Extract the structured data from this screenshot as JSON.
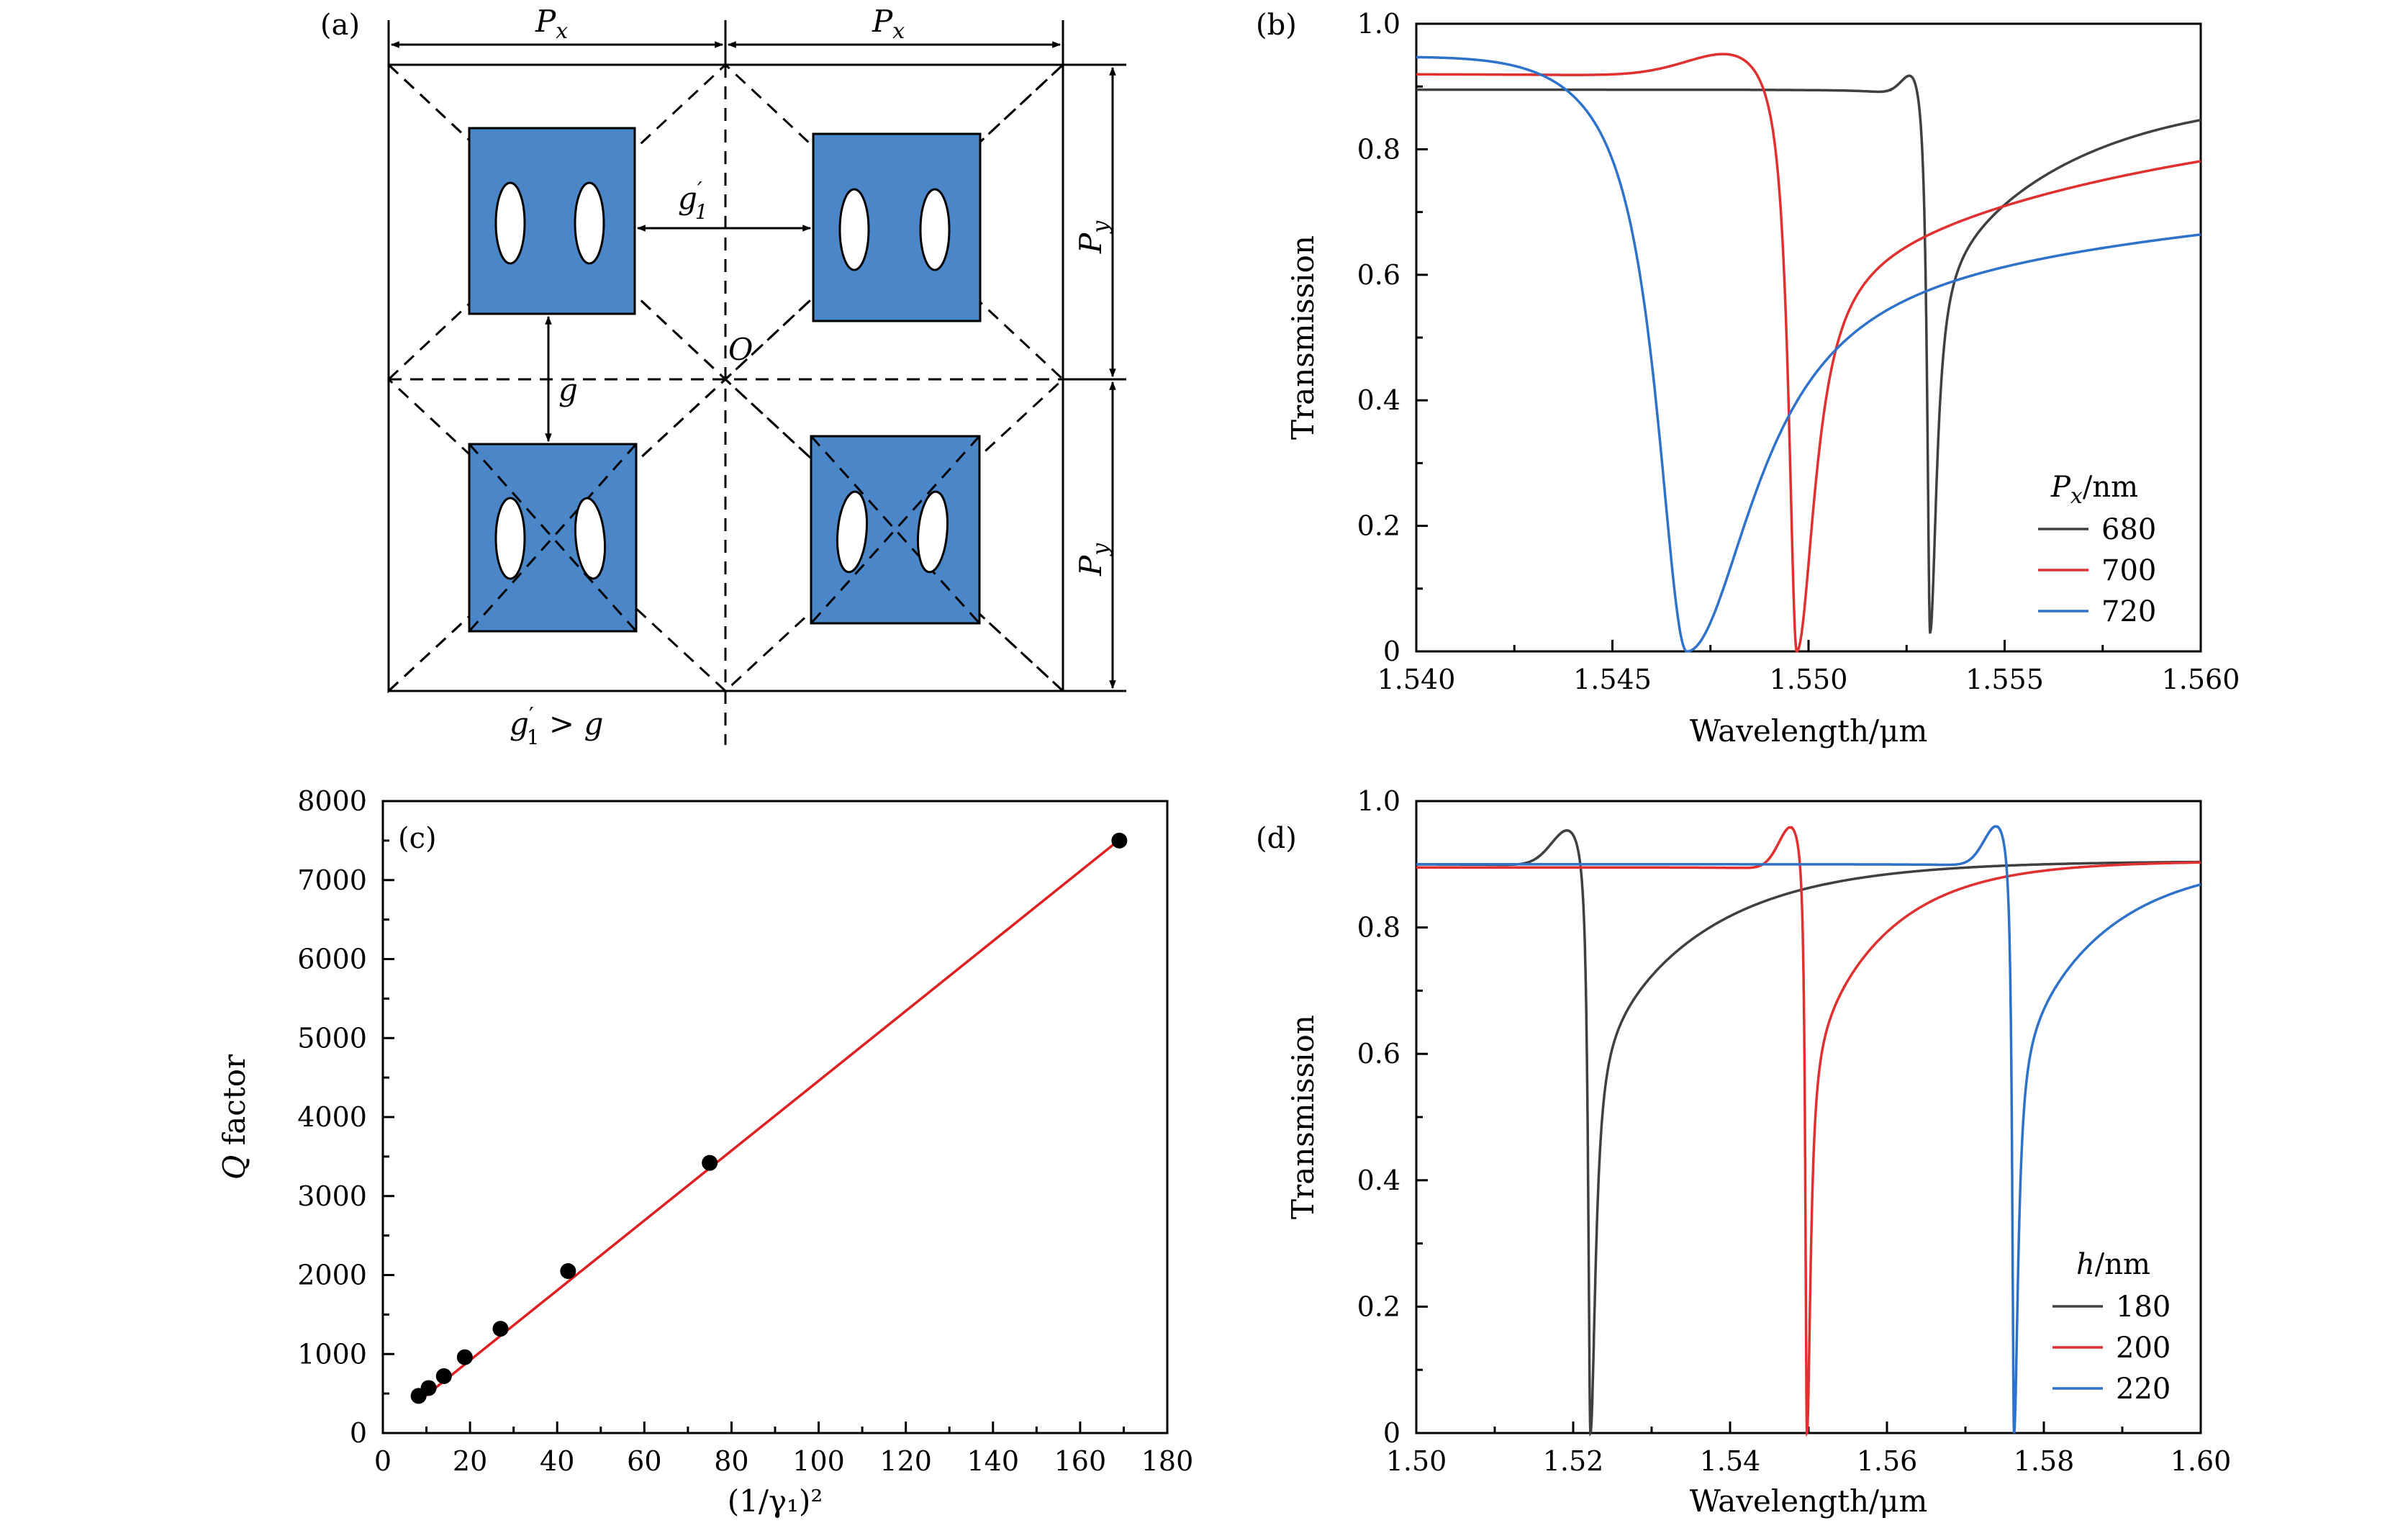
{
  "panels": {
    "a": {
      "label": "(a)",
      "px_label": "P",
      "px_sub": "x",
      "py_label": "P",
      "py_sub": "y",
      "g_label": "g",
      "g1_label": "g",
      "g1_sub": "1",
      "prime": "′",
      "origin_label": "O",
      "relation_gt": " > ",
      "relation_g": "g",
      "colors": {
        "square": "#4a86c8",
        "line": "#000000"
      }
    },
    "b": {
      "label": "(b)"
    },
    "c": {
      "label": "(c)"
    },
    "d": {
      "label": "(d)"
    }
  },
  "chart_data": [
    {
      "panel": "b",
      "type": "line",
      "xlabel": "Wavelength/μm",
      "ylabel": "Transmission",
      "xlim": [
        1.54,
        1.56
      ],
      "ylim": [
        0,
        1.0
      ],
      "xticks": [
        "1.540",
        "1.545",
        "1.550",
        "1.555",
        "1.560"
      ],
      "yticks": [
        "0",
        "0.2",
        "0.4",
        "0.6",
        "0.8",
        "1.0"
      ],
      "legend": {
        "title_var": "P",
        "title_sub": "x",
        "title_unit": "/nm",
        "position": "bottom-right"
      },
      "series": [
        {
          "name": "680",
          "color": "#404040",
          "baseline": 0.895,
          "peak": 0.955,
          "dip_x": 1.5531,
          "dip_min": 0.03,
          "width": 9e-05,
          "asym_wl": 1.5528,
          "slope": 0.0,
          "tail": 0.89
        },
        {
          "name": "700",
          "color": "#e03030",
          "baseline": 0.92,
          "peak": 0.975,
          "dip_x": 1.5497,
          "dip_min": 0.0,
          "width": 0.00025,
          "asym_wl": 1.5485,
          "slope": 0.0,
          "tail": 0.885
        },
        {
          "name": "720",
          "color": "#2f72c9",
          "baseline": 0.955,
          "peak": 0.98,
          "dip_x": 1.5469,
          "dip_min": 0.0,
          "width": 0.00095,
          "asym_wl": 1.5442,
          "slope": 0.0,
          "tail": 0.878
        }
      ]
    },
    {
      "panel": "c",
      "type": "scatter",
      "xlabel": "(1/γ₁)²",
      "ylabel_var": "Q",
      "ylabel_rest": " factor",
      "xlim": [
        0,
        180
      ],
      "ylim": [
        0,
        8000
      ],
      "xticks": [
        "0",
        "20",
        "40",
        "60",
        "80",
        "100",
        "120",
        "140",
        "160",
        "180"
      ],
      "yticks": [
        "0",
        "1000",
        "2000",
        "3000",
        "4000",
        "5000",
        "6000",
        "7000",
        "8000"
      ],
      "points": [
        {
          "x": 8.2,
          "y": 470
        },
        {
          "x": 10.5,
          "y": 570
        },
        {
          "x": 14.0,
          "y": 720
        },
        {
          "x": 18.8,
          "y": 960
        },
        {
          "x": 27.0,
          "y": 1320
        },
        {
          "x": 42.5,
          "y": 2050
        },
        {
          "x": 75.0,
          "y": 3420
        },
        {
          "x": 169.0,
          "y": 7500
        }
      ],
      "fit": {
        "x": [
          8.2,
          169.0
        ],
        "y": [
          400,
          7510
        ],
        "color": "#e02020"
      },
      "point_color": "#000000"
    },
    {
      "panel": "d",
      "type": "line",
      "xlabel": "Wavelength/μm",
      "ylabel": "Transmission",
      "xlim": [
        1.5,
        1.6
      ],
      "ylim": [
        0,
        1.0
      ],
      "xticks": [
        "1.50",
        "1.52",
        "1.54",
        "1.56",
        "1.58",
        "1.60"
      ],
      "yticks": [
        "0",
        "0.2",
        "0.4",
        "0.6",
        "0.8",
        "1.0"
      ],
      "legend": {
        "title_var": "h",
        "title_unit": "/nm",
        "position": "bottom-right"
      },
      "series": [
        {
          "name": "180",
          "color": "#404040",
          "baseline": 0.9,
          "peak": 0.97,
          "dip_x": 1.5222,
          "dip_min": 0.0,
          "width": 0.00035,
          "asym_wl": 1.52,
          "tail": 0.905
        },
        {
          "name": "200",
          "color": "#e03030",
          "baseline": 0.895,
          "peak": 0.975,
          "dip_x": 1.5498,
          "dip_min": 0.0,
          "width": 0.00025,
          "asym_wl": 1.5482,
          "tail": 0.905
        },
        {
          "name": "220",
          "color": "#2f72c9",
          "baseline": 0.9,
          "peak": 0.978,
          "dip_x": 1.5762,
          "dip_min": 0.0,
          "width": 0.00028,
          "asym_wl": 1.5745,
          "tail": 0.905
        }
      ]
    }
  ]
}
